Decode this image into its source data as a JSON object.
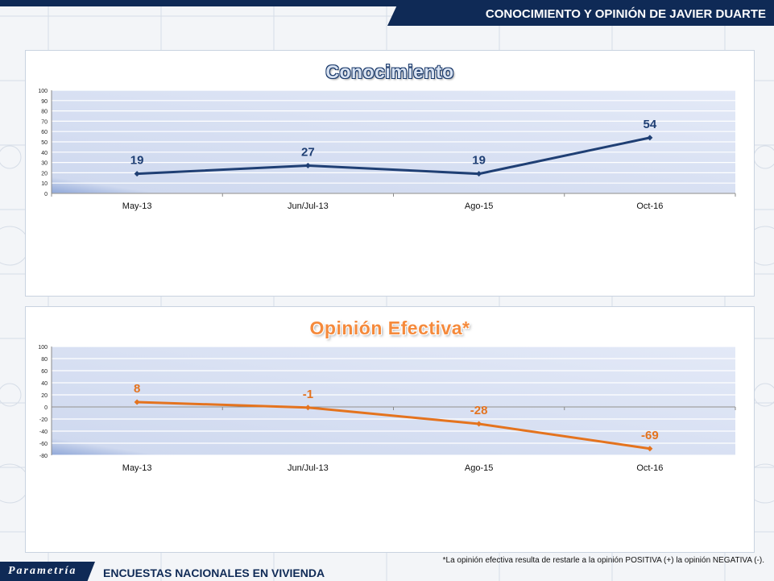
{
  "header": {
    "title": "CONOCIMIENTO Y OPINIÓN DE JAVIER DUARTE"
  },
  "footer": {
    "logo": "Parametría",
    "label": "ENCUESTAS NACIONALES EN VIVIENDA",
    "footnote": "*La opinión efectiva resulta de restarle a la opinión POSITIVA (+) la opinión NEGATIVA (-)."
  },
  "colors": {
    "navy": "#0f2a56",
    "series1": "#1f3f74",
    "series2": "#e4731e",
    "label1": "#1f3f74",
    "label2": "#e4731e"
  },
  "chart_data": [
    {
      "type": "line",
      "title": "Conocimiento",
      "categories": [
        "May-13",
        "Jun/Jul-13",
        "Ago-15",
        "Oct-16"
      ],
      "values": [
        19,
        27,
        19,
        54
      ],
      "data_labels": [
        "19",
        "27",
        "19",
        "54"
      ],
      "ylim": [
        0,
        100
      ],
      "yticks": [
        "0",
        "10",
        "20",
        "30",
        "40",
        "50",
        "60",
        "70",
        "80",
        "90",
        "100"
      ],
      "grid": true
    },
    {
      "type": "line",
      "title": "Opinión Efectiva*",
      "categories": [
        "May-13",
        "Jun/Jul-13",
        "Ago-15",
        "Oct-16"
      ],
      "values": [
        8,
        -1,
        -28,
        -69
      ],
      "data_labels": [
        "8",
        "-1",
        "-28",
        "-69"
      ],
      "ylim": [
        -80,
        100
      ],
      "yticks": [
        "-80",
        "-60",
        "-40",
        "-20",
        "0",
        "20",
        "40",
        "60",
        "80",
        "100"
      ],
      "grid": true
    }
  ]
}
